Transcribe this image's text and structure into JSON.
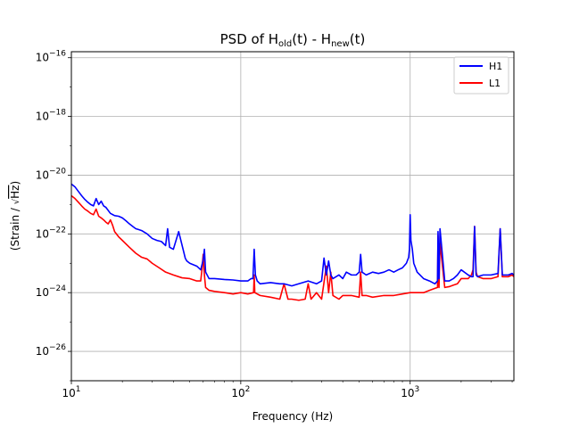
{
  "chart_data": {
    "type": "line",
    "title": {
      "prefix": "PSD of H",
      "sub1": "old",
      "mid": "(t) - H",
      "sub2": "new",
      "suffix": "(t)"
    },
    "xlabel": "Frequency (Hz)",
    "ylabel": {
      "left": "(Strain / ",
      "sqrt": "√",
      "over": "Hz",
      "right": ")"
    },
    "x_scale": "log",
    "y_scale": "log",
    "xlim": [
      10,
      4096
    ],
    "ylim": [
      1e-27,
      1.6e-16
    ],
    "grid": true,
    "legend_position": "top-right",
    "x_ticks": [
      {
        "value": 10,
        "base": "10",
        "exp": "1"
      },
      {
        "value": 100,
        "base": "10",
        "exp": "2"
      },
      {
        "value": 1000,
        "base": "10",
        "exp": "3"
      }
    ],
    "y_ticks": [
      {
        "value": 1e-26,
        "base": "10",
        "exp": "−26"
      },
      {
        "value": 1e-24,
        "base": "10",
        "exp": "−24"
      },
      {
        "value": 1e-22,
        "base": "10",
        "exp": "−22"
      },
      {
        "value": 1e-20,
        "base": "10",
        "exp": "−20"
      },
      {
        "value": 1e-18,
        "base": "10",
        "exp": "−18"
      },
      {
        "value": 1e-16,
        "base": "10",
        "exp": "−16"
      }
    ],
    "series": [
      {
        "name": "H1",
        "color": "#0000ff",
        "x": [
          10,
          10.5,
          11,
          11.5,
          12,
          12.5,
          13,
          13.5,
          14,
          14.5,
          15,
          15.5,
          16,
          17,
          18,
          19,
          20,
          21,
          22,
          23,
          24,
          25,
          26,
          28,
          30,
          32,
          34,
          36,
          37,
          38,
          40,
          43,
          46,
          47,
          48,
          50,
          55,
          58,
          60,
          61,
          62,
          65,
          70,
          80,
          90,
          100,
          110,
          115,
          118,
          120,
          122,
          125,
          130,
          150,
          170,
          180,
          200,
          220,
          250,
          280,
          300,
          310,
          320,
          330,
          340,
          350,
          380,
          400,
          420,
          450,
          480,
          500,
          510,
          520,
          550,
          600,
          650,
          700,
          750,
          800,
          850,
          900,
          950,
          980,
          990,
          1000,
          1010,
          1030,
          1050,
          1100,
          1200,
          1300,
          1400,
          1450,
          1460,
          1480,
          1500,
          1600,
          1700,
          1800,
          1900,
          2000,
          2200,
          2300,
          2350,
          2400,
          2450,
          2500,
          2700,
          3000,
          3300,
          3400,
          3500,
          3800,
          4000,
          4096
        ],
        "y": [
          5e-21,
          4e-21,
          2.8e-21,
          2e-21,
          1.5e-21,
          1.2e-21,
          1e-21,
          9e-22,
          1.6e-21,
          1e-21,
          1.3e-21,
          9e-22,
          8e-22,
          5e-22,
          4.2e-22,
          4e-22,
          3.5e-22,
          2.8e-22,
          2.2e-22,
          1.8e-22,
          1.5e-22,
          1.4e-22,
          1.3e-22,
          1e-22,
          7e-23,
          6e-23,
          5.5e-23,
          4e-23,
          1.5e-22,
          3.5e-23,
          3e-23,
          1.2e-22,
          2.5e-23,
          1.5e-23,
          1.2e-23,
          1e-23,
          8e-24,
          6e-24,
          1.3e-23,
          3e-23,
          5e-24,
          3e-24,
          3e-24,
          2.8e-24,
          2.7e-24,
          2.5e-24,
          2.5e-24,
          3e-24,
          3e-24,
          3e-23,
          4e-24,
          2.5e-24,
          2e-24,
          2.2e-24,
          2e-24,
          2e-24,
          1.7e-24,
          2e-24,
          2.5e-24,
          2e-24,
          2.5e-24,
          1.5e-23,
          4e-24,
          1.2e-23,
          4e-24,
          3e-24,
          4e-24,
          3e-24,
          5e-24,
          4e-24,
          4e-24,
          5e-24,
          2e-23,
          5e-24,
          4e-24,
          5e-24,
          4.5e-24,
          5e-24,
          6e-24,
          5e-24,
          6e-24,
          7e-24,
          1e-23,
          1.6e-23,
          3e-23,
          4.5e-22,
          6e-23,
          3e-23,
          1e-23,
          5e-24,
          3e-24,
          2.5e-24,
          2e-24,
          2.5e-24,
          1.2e-22,
          3e-24,
          1.5e-22,
          2.5e-24,
          2.5e-24,
          3e-24,
          4e-24,
          6e-24,
          4e-24,
          3.5e-24,
          3.5e-24,
          1.8e-22,
          4e-24,
          3.5e-24,
          4e-24,
          4e-24,
          4.5e-24,
          1.5e-22,
          4e-24,
          4e-24,
          4.5e-24,
          4e-24
        ]
      },
      {
        "name": "L1",
        "color": "#ff0000",
        "x": [
          10,
          10.5,
          11,
          11.5,
          12,
          12.5,
          13,
          13.5,
          14,
          14.5,
          15,
          15.5,
          16,
          16.5,
          17,
          17.5,
          18,
          19,
          20,
          22,
          24,
          26,
          28,
          30,
          33,
          36,
          40,
          45,
          50,
          55,
          58,
          59,
          60,
          61,
          62,
          65,
          70,
          80,
          90,
          100,
          110,
          119,
          120,
          121,
          130,
          150,
          170,
          180,
          190,
          200,
          220,
          240,
          250,
          260,
          280,
          300,
          320,
          330,
          340,
          350,
          380,
          400,
          450,
          500,
          510,
          520,
          550,
          600,
          700,
          800,
          900,
          1000,
          1100,
          1200,
          1300,
          1400,
          1450,
          1460,
          1480,
          1500,
          1600,
          1700,
          1800,
          1900,
          2000,
          2200,
          2300,
          2350,
          2400,
          2450,
          2500,
          2700,
          3000,
          3300,
          3400,
          3500,
          3800,
          4000,
          4096
        ],
        "y": [
          2e-21,
          1.6e-21,
          1.2e-21,
          9e-22,
          7e-22,
          6e-22,
          5e-22,
          4.5e-22,
          7e-22,
          4e-22,
          3.5e-22,
          3e-22,
          2.5e-22,
          2.2e-22,
          3e-22,
          2e-22,
          1.2e-22,
          8e-23,
          6e-23,
          3.5e-23,
          2.2e-23,
          1.6e-23,
          1.4e-23,
          1e-23,
          7e-24,
          5e-24,
          4e-24,
          3.2e-24,
          3e-24,
          2.5e-24,
          2.5e-24,
          6e-24,
          2e-23,
          4e-24,
          1.5e-24,
          1.2e-24,
          1.1e-24,
          1e-24,
          9e-25,
          1e-24,
          9e-25,
          1e-24,
          4e-24,
          1e-24,
          8e-25,
          7e-25,
          6e-25,
          2e-24,
          6e-25,
          6e-25,
          5.5e-25,
          6e-25,
          2e-24,
          6e-25,
          1e-24,
          6e-25,
          8e-24,
          1e-24,
          5e-24,
          8e-25,
          6e-25,
          8e-25,
          8e-25,
          7e-25,
          5e-24,
          8e-25,
          8e-25,
          7e-25,
          8e-25,
          8e-25,
          9e-25,
          1e-24,
          1e-24,
          1e-24,
          1.2e-24,
          1.4e-24,
          1.5e-24,
          9e-23,
          1.5e-24,
          5e-23,
          1.5e-24,
          1.6e-24,
          1.8e-24,
          2e-24,
          3e-24,
          3e-24,
          4e-24,
          6e-24,
          1.8e-22,
          5e-24,
          3.5e-24,
          3e-24,
          3e-24,
          3.5e-24,
          1.5e-22,
          3.5e-24,
          3.5e-24,
          4e-24,
          3.5e-24
        ]
      }
    ]
  }
}
